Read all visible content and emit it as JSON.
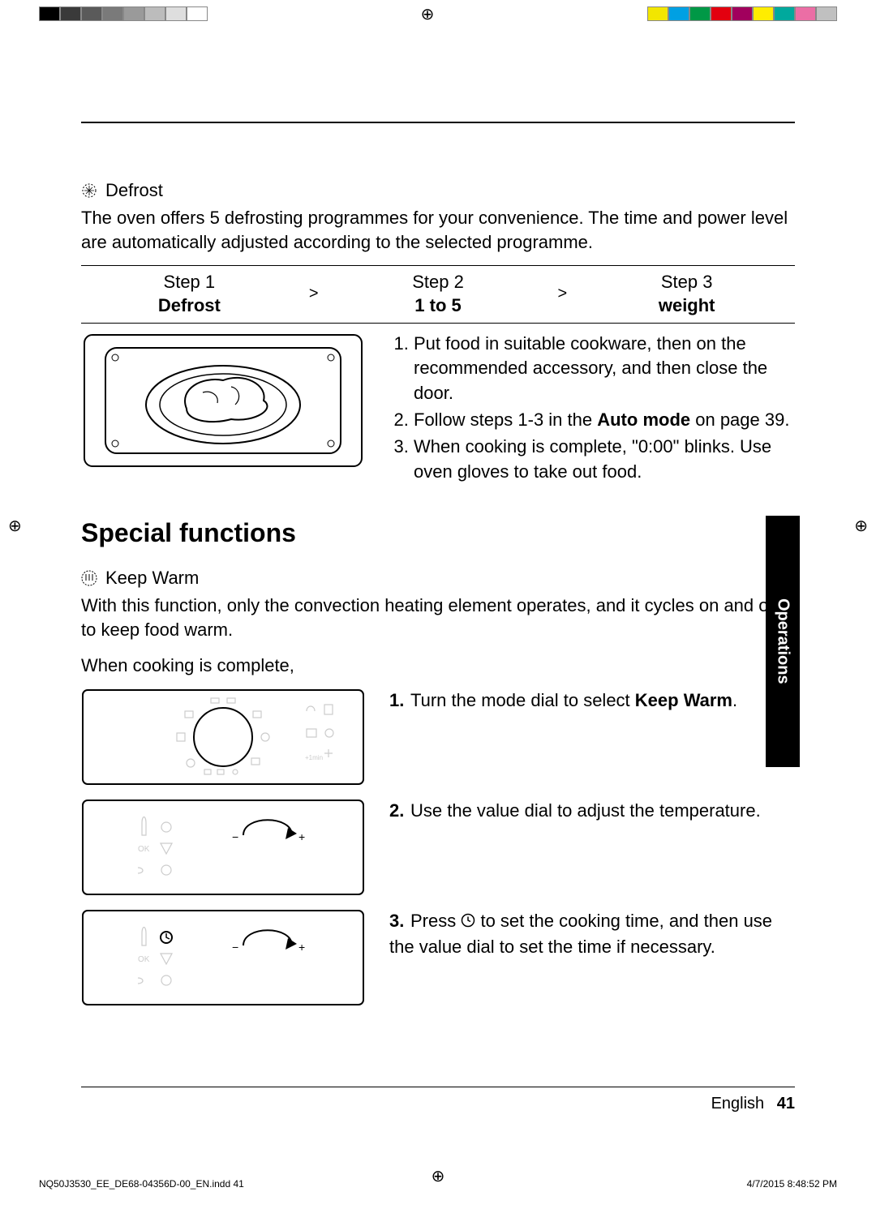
{
  "calibration": {
    "left_swatches": [
      "#000000",
      "#3a3a3a",
      "#5a5a5a",
      "#7a7a7a",
      "#9a9a9a",
      "#bcbcbc",
      "#dedede",
      "#ffffff"
    ],
    "right_swatches": [
      "#f2e600",
      "#00a0e3",
      "#009846",
      "#e3000f",
      "#a1005d",
      "#ffed00",
      "#00a99d",
      "#eb6ea5",
      "#c0c0c0"
    ]
  },
  "defrost": {
    "label": "Defrost",
    "intro": "The oven offers 5 defrosting programmes for your convenience. The time and power level are automatically adjusted according to the selected programme.",
    "steps": [
      {
        "title": "Step 1",
        "value": "Defrost"
      },
      {
        "title": "Step 2",
        "value": "1 to 5"
      },
      {
        "title": "Step 3",
        "value": "weight"
      }
    ],
    "arrow": ">",
    "instructions": {
      "i1a": "Put food in suitable cookware, then on the recommended accessory, and then close the door.",
      "i2a": "Follow steps 1-3 in the ",
      "i2b": "Auto mode",
      "i2c": " on page 39.",
      "i3a": "When cooking is complete, \"0:00\" blinks. Use oven gloves to take out food."
    }
  },
  "special": {
    "heading": "Special functions",
    "keepwarm": {
      "label": "Keep Warm",
      "intro": "With this function, only the convection heating element operates, and it cycles on and off to keep food warm.",
      "lead": "When cooking is complete,",
      "steps": {
        "s1a": "Turn the mode dial to select ",
        "s1b": "Keep Warm",
        "s1c": ".",
        "s2": "Use the value dial to adjust the temperature.",
        "s3a": "Press ",
        "s3b": " to set the cooking time, and then use the value dial to set the time if necessary."
      }
    }
  },
  "sidetab": "Operations",
  "footer": {
    "lang": "English",
    "page": "41"
  },
  "imprint": {
    "left": "NQ50J3530_EE_DE68-04356D-00_EN.indd   41",
    "right": "4/7/2015   8:48:52 PM"
  }
}
